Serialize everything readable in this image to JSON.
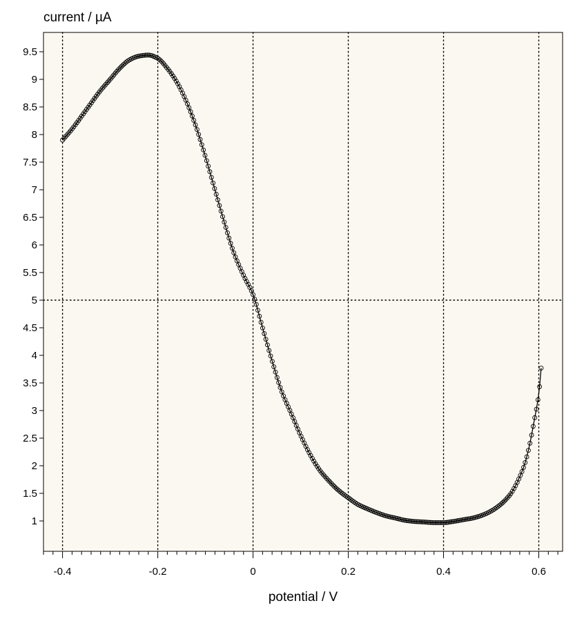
{
  "chart_data": {
    "type": "line",
    "ylabel": "current / µA",
    "xlabel": "potential / V",
    "xlim": [
      -0.44,
      0.65
    ],
    "ylim": [
      0.45,
      9.85
    ],
    "x_ticks": [
      -0.4,
      -0.2,
      0,
      0.2,
      0.4,
      0.6
    ],
    "x_tick_labels": [
      "-0.4",
      "-0.2",
      "0",
      "0.2",
      "0.4",
      "0.6"
    ],
    "x_minor_step": 0.02,
    "y_ticks": [
      1,
      1.5,
      2,
      2.5,
      3,
      3.5,
      4,
      4.5,
      5,
      5.5,
      6,
      6.5,
      7,
      7.5,
      8,
      8.5,
      9,
      9.5
    ],
    "y_tick_labels": [
      "1",
      "1.5",
      "2",
      "2.5",
      "3",
      "3.5",
      "4",
      "4.5",
      "5",
      "5.5",
      "6",
      "6.5",
      "7",
      "7.5",
      "8",
      "8.5",
      "9",
      "9.5"
    ],
    "grid": {
      "vertical_dotted_at": [
        -0.4,
        -0.2,
        0,
        0.2,
        0.4,
        0.6
      ],
      "horizontal_dotted_at": [
        5
      ]
    },
    "colors": {
      "plot_background": "#fbf8f1",
      "line": "#000000",
      "marker": "#000000",
      "grid": "#000000"
    },
    "marker": "open-circle",
    "series": [
      {
        "key_points": {
          "x": [
            -0.4,
            -0.38,
            -0.35,
            -0.32,
            -0.3,
            -0.28,
            -0.26,
            -0.24,
            -0.22,
            -0.2,
            -0.18,
            -0.16,
            -0.14,
            -0.12,
            -0.1,
            -0.08,
            -0.06,
            -0.04,
            -0.02,
            0.0,
            0.02,
            0.04,
            0.06,
            0.08,
            0.1,
            0.12,
            0.14,
            0.16,
            0.18,
            0.2,
            0.22,
            0.24,
            0.26,
            0.28,
            0.3,
            0.32,
            0.34,
            0.36,
            0.38,
            0.4,
            0.42,
            0.44,
            0.46,
            0.48,
            0.5,
            0.52,
            0.54,
            0.55,
            0.56,
            0.57,
            0.58,
            0.59,
            0.6,
            0.605
          ],
          "y": [
            7.9,
            8.1,
            8.45,
            8.8,
            9.0,
            9.2,
            9.35,
            9.42,
            9.44,
            9.38,
            9.2,
            8.95,
            8.6,
            8.15,
            7.6,
            7.0,
            6.4,
            5.85,
            5.45,
            5.1,
            4.5,
            3.9,
            3.35,
            2.95,
            2.55,
            2.2,
            1.92,
            1.72,
            1.55,
            1.42,
            1.3,
            1.22,
            1.15,
            1.09,
            1.05,
            1.01,
            0.99,
            0.98,
            0.97,
            0.97,
            0.99,
            1.02,
            1.05,
            1.1,
            1.18,
            1.3,
            1.48,
            1.62,
            1.8,
            2.02,
            2.35,
            2.8,
            3.3,
            3.77
          ]
        }
      }
    ]
  }
}
